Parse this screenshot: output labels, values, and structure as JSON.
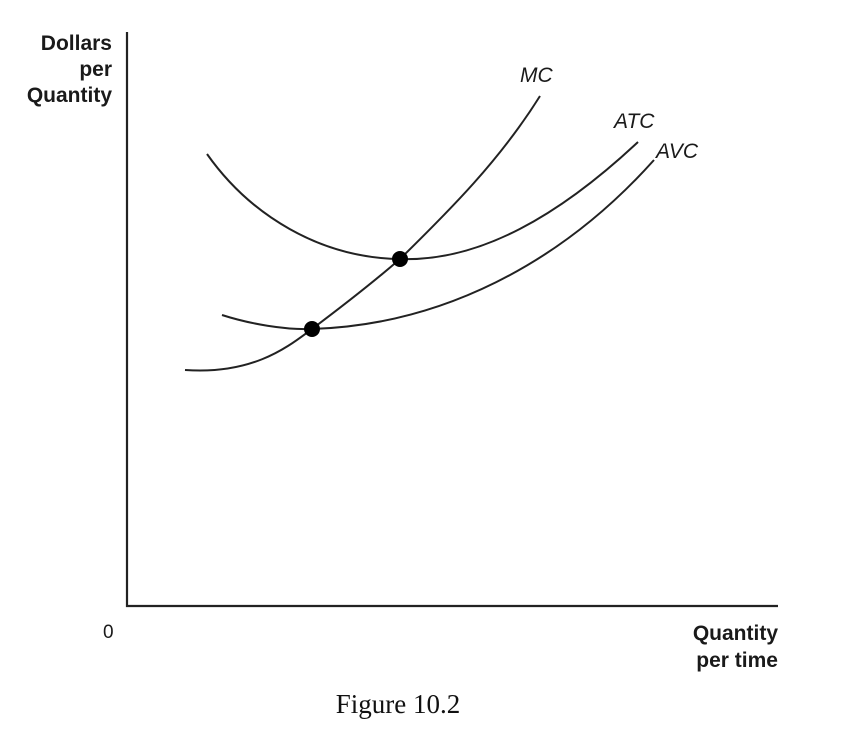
{
  "diagram": {
    "y_axis_label": [
      "Dollars",
      "per",
      "Quantity"
    ],
    "x_axis_label": [
      "Quantity",
      "per time"
    ],
    "origin_label": "0",
    "curves": {
      "mc": "MC",
      "atc": "ATC",
      "avc": "AVC"
    },
    "points": [
      "MC crosses AVC at AVC minimum",
      "MC crosses ATC at ATC minimum"
    ],
    "caption": "Figure 10.2"
  }
}
